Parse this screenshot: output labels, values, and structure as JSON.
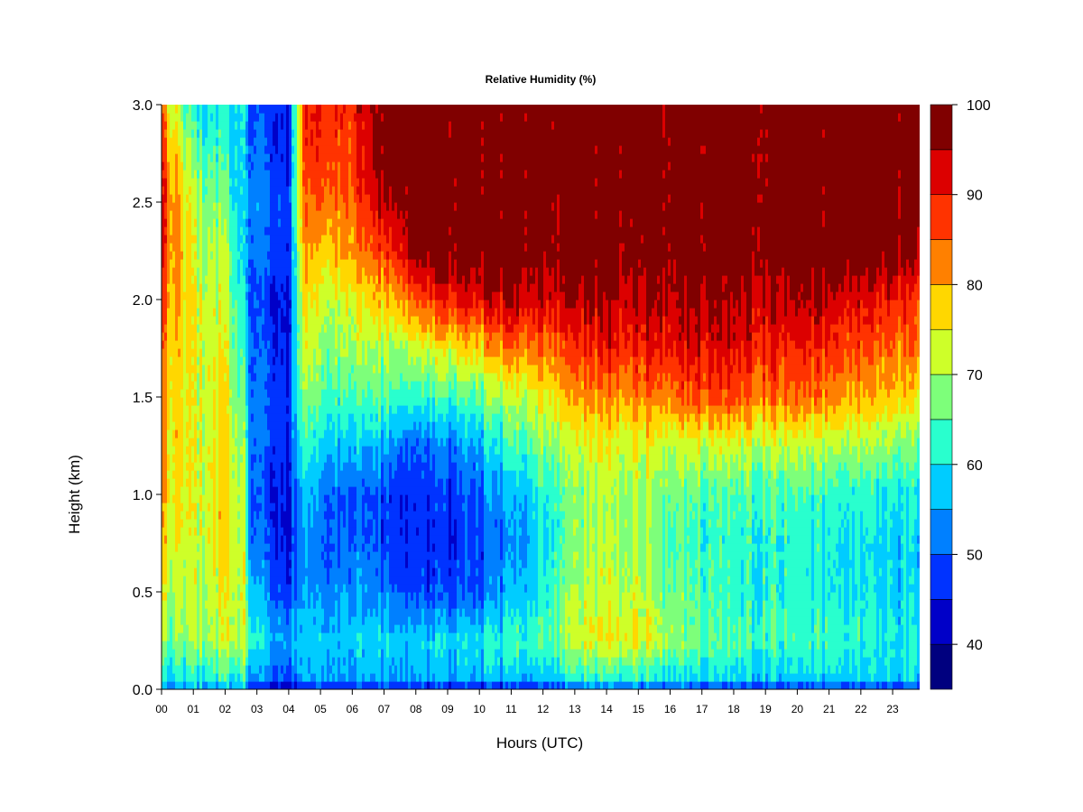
{
  "chart_data": {
    "type": "heatmap",
    "title": "Relative Humidity (%)",
    "xlabel": "Hours (UTC)",
    "ylabel": "Height (km)",
    "xlim": [
      0,
      23.85
    ],
    "ylim": [
      0,
      3.0
    ],
    "x_ticks": [
      "00",
      "01",
      "02",
      "03",
      "04",
      "05",
      "06",
      "07",
      "08",
      "09",
      "10",
      "11",
      "12",
      "13",
      "14",
      "15",
      "16",
      "17",
      "18",
      "19",
      "20",
      "21",
      "22",
      "23"
    ],
    "y_ticks": [
      "0.0",
      "0.5",
      "1.0",
      "1.5",
      "2.0",
      "2.5",
      "3.0"
    ],
    "colorbar": {
      "levels": [
        35,
        40,
        45,
        50,
        55,
        60,
        65,
        70,
        75,
        80,
        85,
        90,
        95,
        100
      ],
      "colors": [
        "#00007F",
        "#0000C8",
        "#0033FF",
        "#0080FF",
        "#00CCFF",
        "#29FFCE",
        "#7DFF7A",
        "#CEFF29",
        "#FFD700",
        "#FF8000",
        "#FF3300",
        "#DC0000",
        "#800000"
      ],
      "tick_labels": [
        "40",
        "50",
        "60",
        "70",
        "80",
        "90",
        "100"
      ]
    },
    "heights_km": [
      0.0,
      0.05,
      0.25,
      0.5,
      0.75,
      1.0,
      1.25,
      1.5,
      1.75,
      2.0,
      2.25,
      2.5,
      2.75,
      3.0
    ],
    "hours": [
      0,
      1,
      2,
      2.6,
      2.8,
      4,
      4.5,
      5,
      6,
      7,
      8,
      9,
      10,
      11,
      12,
      13,
      14,
      14.8,
      16,
      17,
      18,
      19,
      20,
      21,
      22,
      23,
      23.85
    ],
    "rh_profiles": [
      [
        52,
        58,
        66,
        72,
        76,
        78,
        79,
        80,
        82,
        84,
        88,
        90,
        86,
        82
      ],
      [
        53,
        60,
        68,
        70,
        71,
        72,
        72,
        72,
        73,
        73,
        72,
        70,
        66,
        58
      ],
      [
        54,
        62,
        72,
        74,
        76,
        77,
        76,
        75,
        74,
        72,
        70,
        66,
        62,
        60
      ],
      [
        55,
        62,
        72,
        72,
        72,
        70,
        68,
        65,
        62,
        60,
        58,
        56,
        58,
        60
      ],
      [
        42,
        52,
        60,
        56,
        50,
        48,
        50,
        50,
        49,
        48,
        50,
        52,
        50,
        48
      ],
      [
        40,
        50,
        55,
        48,
        45,
        45,
        47,
        48,
        46,
        45,
        48,
        48,
        46,
        46
      ],
      [
        45,
        55,
        58,
        55,
        55,
        58,
        64,
        70,
        74,
        78,
        82,
        85,
        88,
        90
      ],
      [
        45,
        55,
        58,
        52,
        50,
        52,
        58,
        64,
        68,
        72,
        78,
        84,
        88,
        90
      ],
      [
        45,
        55,
        58,
        55,
        52,
        50,
        58,
        65,
        70,
        75,
        82,
        85,
        88,
        90
      ],
      [
        45,
        55,
        58,
        52,
        48,
        48,
        55,
        65,
        70,
        78,
        86,
        95,
        98,
        98
      ],
      [
        42,
        55,
        58,
        48,
        46,
        46,
        50,
        62,
        72,
        85,
        98,
        99,
        99,
        99
      ],
      [
        42,
        55,
        58,
        48,
        46,
        47,
        52,
        62,
        75,
        90,
        99,
        99,
        99,
        99
      ],
      [
        42,
        55,
        60,
        50,
        48,
        50,
        56,
        66,
        78,
        92,
        99,
        99,
        99,
        99
      ],
      [
        42,
        55,
        62,
        55,
        52,
        55,
        62,
        70,
        82,
        94,
        99,
        99,
        99,
        99
      ],
      [
        45,
        57,
        66,
        62,
        60,
        62,
        68,
        76,
        84,
        94,
        99,
        99,
        99,
        99
      ],
      [
        48,
        60,
        72,
        70,
        68,
        68,
        72,
        80,
        88,
        95,
        99,
        99,
        99,
        99
      ],
      [
        48,
        62,
        74,
        72,
        70,
        70,
        74,
        82,
        90,
        95,
        99,
        99,
        99,
        99
      ],
      [
        48,
        62,
        76,
        72,
        70,
        70,
        74,
        82,
        90,
        95,
        98,
        99,
        99,
        99
      ],
      [
        47,
        60,
        70,
        68,
        66,
        68,
        72,
        84,
        92,
        96,
        99,
        99,
        99,
        99
      ],
      [
        45,
        58,
        65,
        64,
        62,
        64,
        72,
        86,
        92,
        96,
        99,
        99,
        99,
        99
      ],
      [
        45,
        58,
        64,
        62,
        62,
        64,
        72,
        86,
        92,
        96,
        99,
        99,
        99,
        99
      ],
      [
        45,
        58,
        64,
        62,
        62,
        64,
        72,
        84,
        90,
        95,
        99,
        99,
        99,
        99
      ],
      [
        45,
        58,
        64,
        62,
        62,
        64,
        72,
        84,
        90,
        95,
        99,
        99,
        99,
        99
      ],
      [
        45,
        58,
        63,
        60,
        60,
        62,
        70,
        82,
        88,
        94,
        99,
        99,
        99,
        99
      ],
      [
        45,
        58,
        62,
        60,
        60,
        62,
        70,
        80,
        86,
        92,
        99,
        99,
        99,
        99
      ],
      [
        45,
        58,
        60,
        58,
        58,
        60,
        68,
        78,
        84,
        90,
        98,
        99,
        99,
        99
      ],
      [
        45,
        58,
        60,
        58,
        58,
        60,
        66,
        76,
        82,
        88,
        96,
        99,
        99,
        99
      ]
    ]
  }
}
